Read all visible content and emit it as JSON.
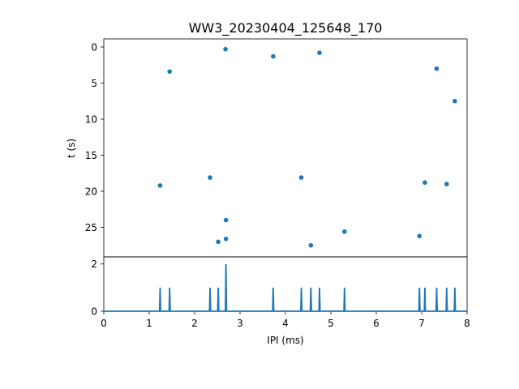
{
  "chart_data": [
    {
      "type": "scatter",
      "title": "WW3_20230404_125648_170",
      "xlabel": "",
      "ylabel": "t (s)",
      "xlim": [
        0,
        8
      ],
      "ylim": [
        0,
        30
      ],
      "y_inverted": true,
      "yticks": [
        "0",
        "5",
        "10",
        "15",
        "20",
        "25"
      ],
      "color": "#1f77b4",
      "points": [
        {
          "x": 2.68,
          "y": 0.3
        },
        {
          "x": 3.73,
          "y": 1.3
        },
        {
          "x": 4.75,
          "y": 0.8
        },
        {
          "x": 1.45,
          "y": 3.4
        },
        {
          "x": 7.33,
          "y": 3.0
        },
        {
          "x": 7.73,
          "y": 7.5
        },
        {
          "x": 2.34,
          "y": 18.1
        },
        {
          "x": 4.35,
          "y": 18.1
        },
        {
          "x": 1.24,
          "y": 19.2
        },
        {
          "x": 7.07,
          "y": 18.8
        },
        {
          "x": 7.55,
          "y": 19.0
        },
        {
          "x": 2.69,
          "y": 24.0
        },
        {
          "x": 5.3,
          "y": 25.6
        },
        {
          "x": 6.95,
          "y": 26.2
        },
        {
          "x": 2.69,
          "y": 26.6
        },
        {
          "x": 2.52,
          "y": 27.0
        },
        {
          "x": 4.56,
          "y": 27.5
        }
      ]
    },
    {
      "type": "line",
      "xlabel": "IPI (ms)",
      "ylabel": "",
      "xlim": [
        0,
        8
      ],
      "ylim": [
        0,
        2.3
      ],
      "xticks": [
        "0",
        "1",
        "2",
        "3",
        "4",
        "5",
        "6",
        "7",
        "8"
      ],
      "yticks": [
        "0",
        "2"
      ],
      "color": "#1f77b4",
      "peaks": [
        {
          "x": 1.24,
          "y": 1
        },
        {
          "x": 1.45,
          "y": 1
        },
        {
          "x": 2.34,
          "y": 1
        },
        {
          "x": 2.52,
          "y": 1
        },
        {
          "x": 2.69,
          "y": 2
        },
        {
          "x": 3.73,
          "y": 1
        },
        {
          "x": 4.35,
          "y": 1
        },
        {
          "x": 4.56,
          "y": 1
        },
        {
          "x": 4.75,
          "y": 1
        },
        {
          "x": 5.3,
          "y": 1
        },
        {
          "x": 6.95,
          "y": 1
        },
        {
          "x": 7.07,
          "y": 1
        },
        {
          "x": 7.33,
          "y": 1
        },
        {
          "x": 7.55,
          "y": 1
        },
        {
          "x": 7.73,
          "y": 1
        }
      ]
    }
  ]
}
